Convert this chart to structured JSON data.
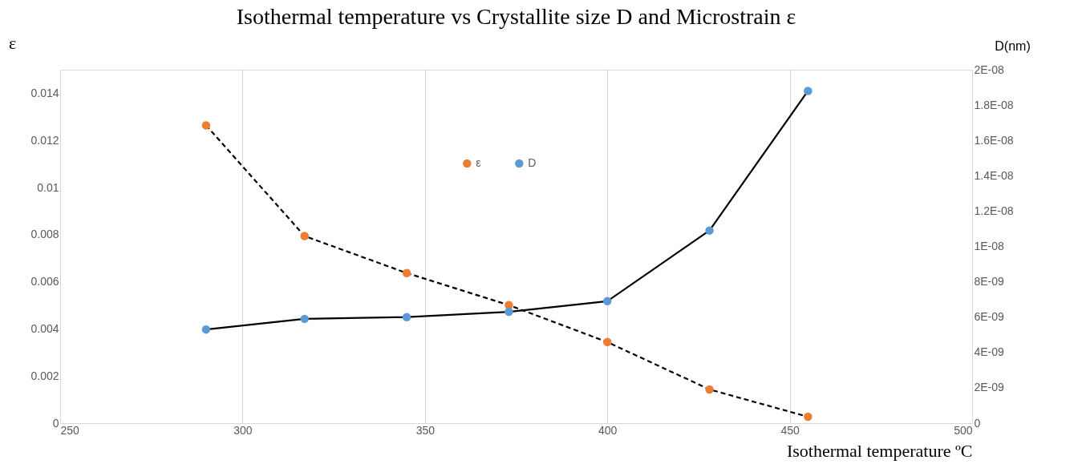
{
  "chart_data": {
    "type": "line",
    "title": "Isothermal temperature vs Crystallite size D and Microstrain ε",
    "xlabel": "Isothermal temperature ºC",
    "ylabel": "ε",
    "y2label": "D(nm)",
    "x": [
      290,
      317,
      345,
      373,
      400,
      428,
      455
    ],
    "series": [
      {
        "name": "ε",
        "color": "#ed7d31",
        "line_style": "dashed",
        "axis": "y",
        "values": [
          0.01264,
          0.00794,
          0.00637,
          0.00501,
          0.00344,
          0.00143,
          0.00027
        ]
      },
      {
        "name": "D",
        "color": "#5b9bd5",
        "line_style": "solid",
        "axis": "y2",
        "values": [
          5.3e-09,
          5.9e-09,
          6e-09,
          6.3e-09,
          6.9e-09,
          1.09e-08,
          1.88e-08
        ]
      }
    ],
    "xlim": [
      250,
      500
    ],
    "xticks": [
      250,
      300,
      350,
      400,
      450,
      500
    ],
    "ylim": [
      0,
      0.015
    ],
    "yticks": [
      0,
      0.002,
      0.004,
      0.006,
      0.008,
      0.01,
      0.012,
      0.014
    ],
    "y2lim": [
      0,
      2e-08
    ],
    "y2ticks": [
      0,
      {
        "value": 2e-09,
        "label": "2E-09"
      },
      {
        "value": 4e-09,
        "label": "4E-09"
      },
      {
        "value": 6e-09,
        "label": "6E-09"
      },
      {
        "value": 8e-09,
        "label": "8E-09"
      },
      {
        "value": 1e-08,
        "label": "1E-08"
      },
      {
        "value": 1.2e-08,
        "label": "1.2E-08"
      },
      {
        "value": 1.4e-08,
        "label": "1.4E-08"
      },
      {
        "value": 1.6e-08,
        "label": "1.6E-08"
      },
      {
        "value": 1.8e-08,
        "label": "1.8E-08"
      },
      {
        "value": 2e-08,
        "label": "2E-08"
      }
    ],
    "grid": "x",
    "legend": "top",
    "marker": "circle"
  }
}
